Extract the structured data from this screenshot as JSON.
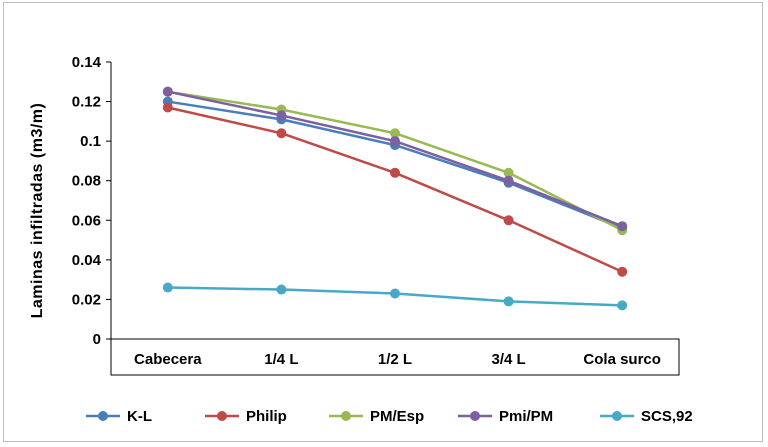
{
  "chart_data": {
    "type": "line",
    "title": "",
    "xlabel": "",
    "ylabel": "Laminas infiltradas (m3/m)",
    "categories": [
      "Cabecera",
      "1/4 L",
      "1/2 L",
      "3/4 L",
      "Cola surco"
    ],
    "ylim": [
      0,
      0.14
    ],
    "yticks": [
      "0",
      "0.02",
      "0.04",
      "0.06",
      "0.08",
      "0.1",
      "0.12",
      "0.14"
    ],
    "grid": false,
    "legend_position": "bottom",
    "series": [
      {
        "name": "K-L",
        "color": "#4a7ebb",
        "values": [
          0.12,
          0.111,
          0.098,
          0.079,
          0.056
        ]
      },
      {
        "name": "Philip",
        "color": "#be4b48",
        "values": [
          0.117,
          0.104,
          0.084,
          0.06,
          0.034
        ]
      },
      {
        "name": "PM/Esp",
        "color": "#98b954",
        "values": [
          0.125,
          0.116,
          0.104,
          0.084,
          0.055
        ]
      },
      {
        "name": "Pmi/PM",
        "color": "#7d60a0",
        "values": [
          0.125,
          0.113,
          0.1,
          0.08,
          0.057
        ]
      },
      {
        "name": "SCS,92",
        "color": "#46aac5",
        "values": [
          0.026,
          0.025,
          0.023,
          0.019,
          0.017
        ]
      }
    ]
  }
}
